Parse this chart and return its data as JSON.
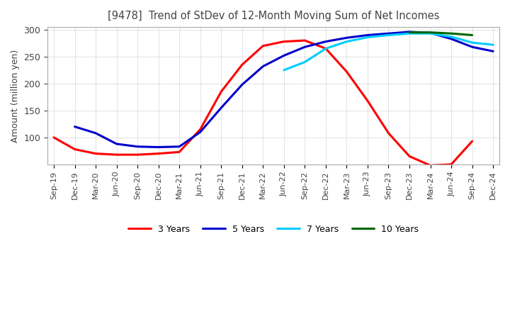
{
  "title": "[9478]  Trend of StDev of 12-Month Moving Sum of Net Incomes",
  "ylabel": "Amount (million yen)",
  "background_color": "#ffffff",
  "grid_color": "#aaaaaa",
  "title_color": "#444444",
  "line_colors": {
    "3y": "#ff0000",
    "5y": "#0000cd",
    "7y": "#00ccff",
    "10y": "#006600"
  },
  "legend_labels": [
    "3 Years",
    "5 Years",
    "7 Years",
    "10 Years"
  ],
  "x_labels": [
    "Sep-19",
    "Dec-19",
    "Mar-20",
    "Jun-20",
    "Sep-20",
    "Dec-20",
    "Mar-21",
    "Jun-21",
    "Sep-21",
    "Dec-21",
    "Mar-22",
    "Jun-22",
    "Sep-22",
    "Dec-22",
    "Mar-23",
    "Jun-23",
    "Sep-23",
    "Dec-23",
    "Mar-24",
    "Jun-24",
    "Sep-24",
    "Dec-24"
  ],
  "series_3y": [
    100,
    78,
    70,
    68,
    68,
    70,
    73,
    115,
    185,
    235,
    270,
    278,
    280,
    265,
    222,
    168,
    108,
    65,
    48,
    50,
    93,
    null
  ],
  "series_5y": [
    null,
    120,
    108,
    88,
    83,
    82,
    83,
    110,
    155,
    198,
    232,
    252,
    268,
    278,
    285,
    290,
    293,
    296,
    294,
    283,
    268,
    260
  ],
  "series_7y": [
    null,
    null,
    null,
    null,
    null,
    null,
    null,
    null,
    null,
    null,
    null,
    225,
    240,
    265,
    278,
    286,
    290,
    293,
    293,
    287,
    276,
    272
  ],
  "series_10y": [
    null,
    null,
    null,
    null,
    null,
    null,
    null,
    null,
    null,
    null,
    null,
    null,
    null,
    null,
    null,
    null,
    null,
    295,
    295,
    293,
    290,
    null
  ],
  "ylim_min": 50,
  "ylim_max": 305,
  "yticks": [
    100,
    150,
    200,
    250,
    300
  ],
  "line_width": 2.2
}
